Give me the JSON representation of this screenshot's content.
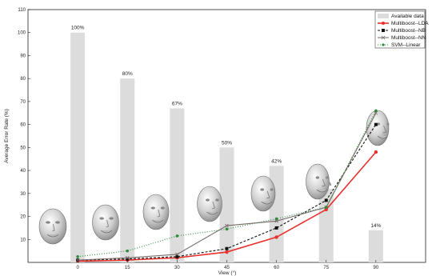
{
  "chart_data": {
    "type": "bar+line",
    "xlabel": "View (°)",
    "ylabel": "Average Error Rate (%)",
    "xlim": [
      -15,
      105
    ],
    "ylim": [
      0,
      110
    ],
    "x_ticks": [
      0,
      15,
      30,
      45,
      60,
      75,
      90
    ],
    "y_ticks": [
      10,
      20,
      30,
      40,
      50,
      60,
      70,
      80,
      90,
      100,
      110
    ],
    "grid": false,
    "legend_position": "top-right",
    "bars": {
      "name": "Available data",
      "x": [
        0,
        15,
        30,
        45,
        60,
        75,
        90
      ],
      "values": [
        100,
        80,
        67,
        50,
        42,
        32,
        14
      ],
      "labels": [
        "100%",
        "80%",
        "67%",
        "50%",
        "42%",
        "32%",
        "14%"
      ],
      "color": "#dcdcdc"
    },
    "series": [
      {
        "name": "Multiboost--LDA",
        "x": [
          0,
          15,
          30,
          45,
          60,
          75,
          90
        ],
        "values": [
          0.5,
          1,
          2,
          4.5,
          11,
          23,
          48
        ],
        "color": "#e8302c",
        "style": "solid",
        "marker": "circle"
      },
      {
        "name": "Multiboost--NB",
        "x": [
          0,
          15,
          30,
          45,
          60,
          75,
          90
        ],
        "values": [
          1,
          1.5,
          2.5,
          6,
          15,
          27,
          60
        ],
        "color": "#111111",
        "style": "dashed",
        "marker": "square"
      },
      {
        "name": "Multiboost--NN",
        "x": [
          0,
          15,
          30,
          45,
          60,
          75,
          90
        ],
        "values": [
          1,
          2,
          3.5,
          16,
          18,
          24,
          65
        ],
        "color": "#7a6a6a",
        "style": "solid",
        "marker": "cross"
      },
      {
        "name": "SVM--Linear",
        "x": [
          0,
          15,
          30,
          45,
          60,
          75,
          90
        ],
        "values": [
          2.5,
          5,
          11.5,
          14.5,
          19,
          24,
          66
        ],
        "color": "#2e8b3a",
        "style": "dotted",
        "marker": "dot"
      }
    ],
    "face_icons": [
      "face-view-0-icon",
      "face-view-15-icon",
      "face-view-30-icon",
      "face-view-45-icon",
      "face-view-60-icon",
      "face-view-75-icon",
      "face-view-90-icon"
    ]
  }
}
